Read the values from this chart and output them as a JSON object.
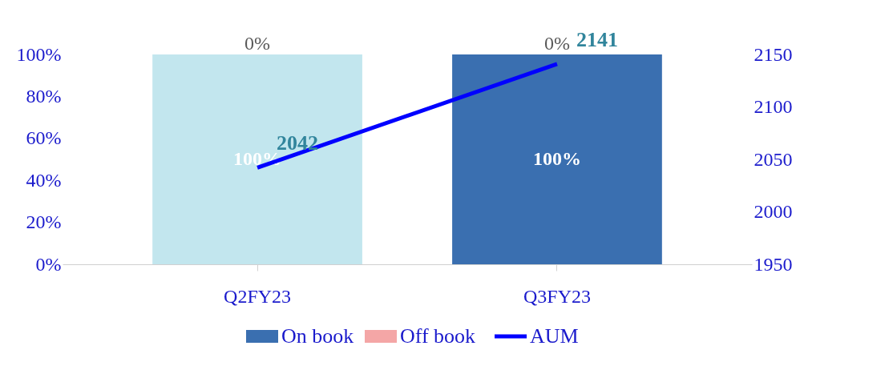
{
  "chart_data": {
    "type": "bar",
    "stacked": true,
    "categories": [
      "Q2FY23",
      "Q3FY23"
    ],
    "ylim": [
      0,
      100
    ],
    "yticks": [
      {
        "value": 0,
        "label": "0%"
      },
      {
        "value": 20,
        "label": "20%"
      },
      {
        "value": 40,
        "label": "40%"
      },
      {
        "value": 60,
        "label": "60%"
      },
      {
        "value": 80,
        "label": "80%"
      },
      {
        "value": 100,
        "label": "100%"
      }
    ],
    "y2lim": [
      1950,
      2150
    ],
    "y2ticks": [
      1950,
      2000,
      2050,
      2100,
      2150
    ],
    "series": [
      {
        "name": "On book",
        "color": "#3a6fb0",
        "colors": [
          "#c2e6ee",
          "#3a6fb0"
        ],
        "values": [
          100,
          100
        ],
        "value_labels": [
          "100%",
          "100%"
        ]
      },
      {
        "name": "Off book",
        "color": "#f4a6a6",
        "values": [
          0,
          0
        ],
        "value_labels": [
          "0%",
          "0%"
        ]
      },
      {
        "name": "AUM",
        "type": "line",
        "axis": "y2",
        "color": "#0000ff",
        "values": [
          2042,
          2141
        ],
        "value_labels": [
          "2042",
          "2141"
        ]
      }
    ],
    "legend": "bottom",
    "grid": false
  }
}
